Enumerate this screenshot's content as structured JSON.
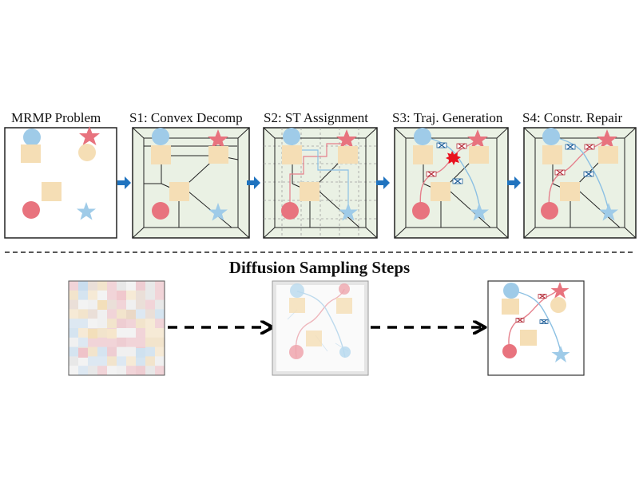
{
  "colors": {
    "panel_bg": "#eaf1e4",
    "obstacle": "#f5deb5",
    "blue_robot": "#9fcbe8",
    "red_robot": "#e8737e",
    "blue_path": "#8cc0e3",
    "red_path": "#e57f8b",
    "arrow_blue": "#1f73bf",
    "collision": "#e8121f",
    "grid": "#bdbdbd"
  },
  "top_row": {
    "panels": [
      {
        "title": "MRMP Problem",
        "icon": "start-goal-scene"
      },
      {
        "title": "S1: Convex Decomp",
        "icon": "convex-decomposition"
      },
      {
        "title": "S2: ST Assignment",
        "icon": "spatio-temporal-grid"
      },
      {
        "title": "S3: Traj. Generation",
        "icon": "collision-burst-icon"
      },
      {
        "title": "S4: Constr. Repair",
        "icon": "repaired-trajectories"
      }
    ]
  },
  "bottom_row": {
    "title": "Diffusion Sampling Steps",
    "stages": [
      {
        "icon": "noisy-sample"
      },
      {
        "icon": "partially-denoised-sample"
      },
      {
        "icon": "clean-sample"
      }
    ]
  }
}
